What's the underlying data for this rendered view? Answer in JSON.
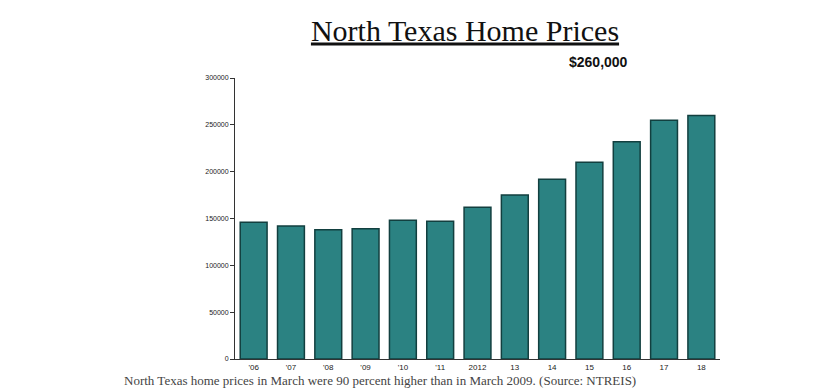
{
  "chart_data": {
    "type": "bar",
    "title": "North Texas Home Prices",
    "annotation": "$260,000",
    "caption": "North Texas home prices in March were 90 percent higher than in March 2009. (Source: NTREIS)",
    "categories": [
      "'06",
      "'07",
      "'08",
      "'09",
      "'10",
      "'11",
      "2012",
      "13",
      "14",
      "15",
      "16",
      "17",
      "18"
    ],
    "values": [
      146000,
      142000,
      138000,
      139000,
      148000,
      147000,
      162000,
      175000,
      192000,
      210000,
      232000,
      255000,
      260000
    ],
    "color": "#2b8282",
    "ylim": [
      0,
      300000
    ],
    "yticks": [
      0,
      50000,
      100000,
      150000,
      200000,
      250000,
      300000
    ],
    "grid": false
  }
}
